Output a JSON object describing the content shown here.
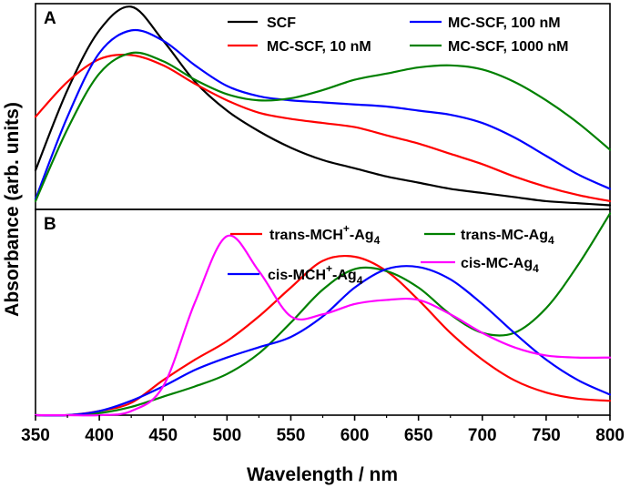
{
  "chart_data": {
    "type": "line",
    "xlabel": "Wavelength / nm",
    "ylabel": "Absorbance (arb. units)",
    "xlim": [
      350,
      800
    ],
    "xticks": [
      350,
      400,
      450,
      500,
      550,
      600,
      650,
      700,
      750,
      800
    ],
    "x_grid": [
      350,
      375,
      400,
      425,
      450,
      475,
      500,
      525,
      550,
      575,
      600,
      625,
      650,
      675,
      700,
      725,
      750,
      775,
      800
    ],
    "panels": [
      {
        "label": "A",
        "ylim": [
          0,
          1
        ],
        "series": [
          {
            "name": "SCF",
            "color": "#000000",
            "values": [
              0.19,
              0.58,
              0.87,
              0.985,
              0.82,
              0.62,
              0.48,
              0.38,
              0.3,
              0.24,
              0.2,
              0.16,
              0.13,
              0.1,
              0.08,
              0.06,
              0.04,
              0.03,
              0.02
            ]
          },
          {
            "name": "MC-SCF, 10 nM",
            "color": "#ff0000",
            "values": [
              0.45,
              0.62,
              0.73,
              0.75,
              0.7,
              0.61,
              0.53,
              0.47,
              0.44,
              0.42,
              0.4,
              0.36,
              0.32,
              0.27,
              0.22,
              0.16,
              0.11,
              0.07,
              0.04
            ]
          },
          {
            "name": "MC-SCF, 100 nM",
            "color": "#0000ff",
            "values": [
              0.05,
              0.45,
              0.76,
              0.87,
              0.82,
              0.7,
              0.6,
              0.55,
              0.53,
              0.52,
              0.51,
              0.5,
              0.48,
              0.46,
              0.42,
              0.35,
              0.26,
              0.17,
              0.1
            ]
          },
          {
            "name": "MC-SCF, 1000 nM",
            "color": "#008000",
            "values": [
              0.04,
              0.39,
              0.66,
              0.76,
              0.72,
              0.63,
              0.56,
              0.53,
              0.54,
              0.58,
              0.63,
              0.66,
              0.69,
              0.7,
              0.68,
              0.62,
              0.53,
              0.42,
              0.29
            ]
          }
        ]
      },
      {
        "label": "B",
        "ylim": [
          0,
          1
        ],
        "series": [
          {
            "name": "trans-MCH+-Ag4",
            "color": "#ff0000",
            "values": [
              0.0,
              0.0,
              0.02,
              0.06,
              0.17,
              0.27,
              0.36,
              0.48,
              0.62,
              0.75,
              0.77,
              0.7,
              0.56,
              0.4,
              0.27,
              0.17,
              0.11,
              0.08,
              0.07
            ]
          },
          {
            "name": "trans-MC-Ag4",
            "color": "#008000",
            "values": [
              0.0,
              0.0,
              0.01,
              0.04,
              0.09,
              0.14,
              0.2,
              0.3,
              0.45,
              0.61,
              0.71,
              0.7,
              0.62,
              0.49,
              0.4,
              0.4,
              0.52,
              0.73,
              0.98
            ]
          },
          {
            "name": "cis-MCH+-Ag4",
            "color": "#0000ff",
            "values": [
              0.0,
              0.0,
              0.02,
              0.07,
              0.14,
              0.22,
              0.28,
              0.33,
              0.38,
              0.48,
              0.62,
              0.71,
              0.72,
              0.66,
              0.54,
              0.4,
              0.27,
              0.17,
              0.1
            ]
          },
          {
            "name": "cis-MC-Ag4",
            "color": "#ff00ff",
            "values": [
              0.0,
              0.0,
              0.0,
              0.02,
              0.14,
              0.55,
              0.87,
              0.7,
              0.48,
              0.49,
              0.54,
              0.56,
              0.56,
              0.49,
              0.4,
              0.33,
              0.29,
              0.28,
              0.28
            ]
          }
        ]
      }
    ]
  },
  "legend_a": {
    "scf": "SCF",
    "mc10": "MC-SCF, 10 nM",
    "mc100": "MC-SCF, 100 nM",
    "mc1000": "MC-SCF, 1000 nM"
  },
  "legend_b": {
    "trans_mch_prefix": "trans-MCH",
    "trans_mch_sup": "+",
    "trans_mch_mid": "-Ag",
    "trans_mch_sub": "4",
    "trans_mc_prefix": "trans-MC-Ag",
    "trans_mc_sub": "4",
    "cis_mch_prefix": "cis-MCH",
    "cis_mch_sup": "+",
    "cis_mch_mid": "-Ag",
    "cis_mch_sub": "4",
    "cis_mc_prefix": "cis-MC-Ag",
    "cis_mc_sub": "4"
  }
}
